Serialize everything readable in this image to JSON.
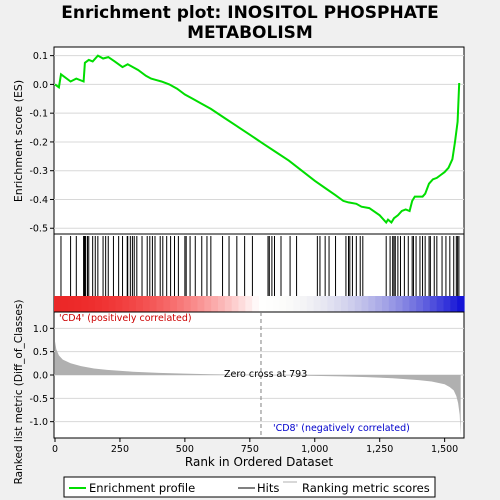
{
  "title_line1": "Enrichment plot: INOSITOL PHOSPHATE",
  "title_line2": "METABOLISM",
  "chart_data": {
    "type": "line",
    "x_max": 1563,
    "top_panel": {
      "ylabel": "Enrichment score (ES)",
      "ylim": [
        -0.52,
        0.13
      ],
      "yticks": [
        0.1,
        0.0,
        -0.1,
        -0.2,
        -0.3,
        -0.4,
        -0.5
      ],
      "ytick_labels": [
        "0.1",
        "0.0",
        "-0.1",
        "-0.2",
        "-0.3",
        "-0.4",
        "-0.5"
      ],
      "enrichment_profile": [
        [
          0,
          0
        ],
        [
          15,
          -0.01
        ],
        [
          23,
          0.035
        ],
        [
          60,
          0.01
        ],
        [
          82,
          0.02
        ],
        [
          110,
          0.01
        ],
        [
          115,
          0.075
        ],
        [
          130,
          0.085
        ],
        [
          145,
          0.08
        ],
        [
          165,
          0.1
        ],
        [
          185,
          0.09
        ],
        [
          205,
          0.095
        ],
        [
          230,
          0.08
        ],
        [
          260,
          0.06
        ],
        [
          280,
          0.07
        ],
        [
          300,
          0.06
        ],
        [
          320,
          0.05
        ],
        [
          350,
          0.03
        ],
        [
          370,
          0.02
        ],
        [
          390,
          0.015
        ],
        [
          410,
          0.01
        ],
        [
          440,
          0.0
        ],
        [
          470,
          -0.015
        ],
        [
          500,
          -0.035
        ],
        [
          530,
          -0.05
        ],
        [
          560,
          -0.065
        ],
        [
          600,
          -0.085
        ],
        [
          650,
          -0.115
        ],
        [
          700,
          -0.145
        ],
        [
          750,
          -0.175
        ],
        [
          800,
          -0.205
        ],
        [
          850,
          -0.235
        ],
        [
          900,
          -0.265
        ],
        [
          950,
          -0.3
        ],
        [
          1000,
          -0.335
        ],
        [
          1040,
          -0.36
        ],
        [
          1080,
          -0.385
        ],
        [
          1110,
          -0.405
        ],
        [
          1130,
          -0.41
        ],
        [
          1160,
          -0.415
        ],
        [
          1180,
          -0.425
        ],
        [
          1210,
          -0.43
        ],
        [
          1250,
          -0.455
        ],
        [
          1275,
          -0.48
        ],
        [
          1282,
          -0.47
        ],
        [
          1295,
          -0.48
        ],
        [
          1305,
          -0.465
        ],
        [
          1320,
          -0.455
        ],
        [
          1335,
          -0.44
        ],
        [
          1350,
          -0.435
        ],
        [
          1365,
          -0.44
        ],
        [
          1375,
          -0.405
        ],
        [
          1385,
          -0.39
        ],
        [
          1400,
          -0.39
        ],
        [
          1415,
          -0.39
        ],
        [
          1425,
          -0.38
        ],
        [
          1440,
          -0.345
        ],
        [
          1455,
          -0.33
        ],
        [
          1470,
          -0.325
        ],
        [
          1485,
          -0.315
        ],
        [
          1500,
          -0.305
        ],
        [
          1515,
          -0.29
        ],
        [
          1530,
          -0.26
        ],
        [
          1540,
          -0.2
        ],
        [
          1550,
          -0.13
        ],
        [
          1556,
          0.005
        ]
      ]
    },
    "hits": [
      23,
      60,
      82,
      110,
      113,
      115,
      118,
      125,
      130,
      145,
      155,
      165,
      185,
      195,
      205,
      225,
      245,
      260,
      278,
      280,
      290,
      298,
      305,
      315,
      335,
      355,
      365,
      375,
      385,
      405,
      415,
      430,
      445,
      460,
      475,
      500,
      505,
      520,
      540,
      565,
      585,
      600,
      645,
      670,
      700,
      730,
      760,
      820,
      825,
      835,
      845,
      870,
      905,
      930,
      1010,
      1020,
      1040,
      1055,
      1080,
      1120,
      1130,
      1135,
      1145,
      1160,
      1175,
      1185,
      1275,
      1290,
      1300,
      1305,
      1310,
      1320,
      1330,
      1345,
      1360,
      1375,
      1380,
      1390,
      1405,
      1415,
      1425,
      1440,
      1445,
      1460,
      1470,
      1490,
      1505,
      1520,
      1535,
      1545,
      1550,
      1555
    ],
    "ranked_metric": {
      "ylabel": "Ranked list metric (Diff_of_Classes)",
      "xlabel": "Rank in Ordered Dataset",
      "ylim": [
        -1.35,
        1.35
      ],
      "yticks": [
        1.0,
        0.5,
        0.0,
        -0.5,
        -1.0
      ],
      "ytick_labels": [
        "1.0",
        "0.5",
        "0.0",
        "-0.5",
        "-1.0"
      ],
      "xticks": [
        0,
        250,
        500,
        750,
        1000,
        1250,
        1500
      ],
      "xtick_labels": [
        "0",
        "250",
        "500",
        "750",
        "1,000",
        "1,250",
        "1,500"
      ],
      "profile": [
        [
          0,
          0.72
        ],
        [
          5,
          0.55
        ],
        [
          15,
          0.42
        ],
        [
          30,
          0.33
        ],
        [
          60,
          0.25
        ],
        [
          100,
          0.19
        ],
        [
          150,
          0.14
        ],
        [
          200,
          0.11
        ],
        [
          300,
          0.07
        ],
        [
          400,
          0.045
        ],
        [
          500,
          0.03
        ],
        [
          600,
          0.018
        ],
        [
          700,
          0.008
        ],
        [
          793,
          0.0
        ],
        [
          900,
          -0.01
        ],
        [
          1000,
          -0.02
        ],
        [
          1100,
          -0.03
        ],
        [
          1200,
          -0.045
        ],
        [
          1300,
          -0.07
        ],
        [
          1400,
          -0.11
        ],
        [
          1450,
          -0.14
        ],
        [
          1500,
          -0.2
        ],
        [
          1520,
          -0.26
        ],
        [
          1535,
          -0.33
        ],
        [
          1545,
          -0.45
        ],
        [
          1552,
          -0.6
        ],
        [
          1558,
          -0.85
        ],
        [
          1562,
          -1.3
        ]
      ]
    },
    "zero_cross": 793,
    "annotations": {
      "zero_cross": "Zero cross at 793",
      "positive": "'CD4' (positively correlated)",
      "negative": "'CD8' (negatively correlated)"
    },
    "colors": {
      "profile": "#00dd00",
      "positive_class": "#dd0000",
      "negative_class": "#0000cc",
      "metric_fill": "#b0b0b0"
    },
    "legend": [
      {
        "label": "Enrichment profile",
        "style": "green-line"
      },
      {
        "label": "Hits",
        "style": "black-line"
      },
      {
        "label": "Ranking metric scores",
        "style": "gray-line"
      }
    ]
  }
}
